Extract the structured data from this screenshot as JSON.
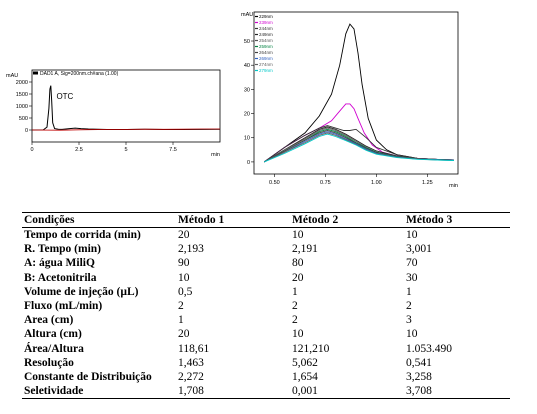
{
  "chart_data": [
    {
      "type": "line",
      "title": "",
      "ylabel": "mAU",
      "xlabel": "min",
      "legend": [
        "DAD1 A, Sig=200nm.ch#ana (1.00)"
      ],
      "annotations": [
        {
          "text": "OTC"
        }
      ],
      "xlim": [
        0,
        10
      ],
      "ylim": [
        -500,
        2500
      ],
      "xticks": [
        0,
        2.5,
        5,
        7.5
      ],
      "xtick_labels": [
        "0",
        "2.5",
        "5",
        "7.5"
      ],
      "yticks": [
        0,
        500,
        1000,
        1500,
        2000
      ],
      "series": [
        {
          "color": "#000000",
          "x": [
            0,
            0.6,
            0.8,
            0.9,
            0.95,
            1.0,
            1.05,
            1.1,
            1.2,
            1.4,
            1.6,
            2.0,
            2.3,
            2.6,
            3.0,
            4.0,
            5.0,
            6.0,
            7.0,
            8.0,
            9.0,
            10.0
          ],
          "y": [
            0,
            5,
            120,
            900,
            1700,
            1850,
            1200,
            300,
            60,
            30,
            25,
            60,
            80,
            60,
            40,
            20,
            20,
            30,
            20,
            20,
            25,
            30
          ]
        },
        {
          "color": "#c00000",
          "x": [
            0,
            1.5,
            2.5,
            4.0,
            5.0,
            6.0,
            7.0,
            8.0,
            9.0,
            10.0
          ],
          "y": [
            0,
            -10,
            10,
            20,
            25,
            35,
            30,
            35,
            40,
            40
          ]
        }
      ]
    },
    {
      "type": "line",
      "title": "",
      "ylabel": "mAU",
      "xlabel": "min",
      "xlim": [
        0.4,
        1.4
      ],
      "ylim": [
        -5,
        62
      ],
      "xticks": [
        0.5,
        0.75,
        1.0,
        1.25
      ],
      "xtick_labels": [
        "0.50",
        "0.75",
        "1.00",
        "1.25"
      ],
      "yticks": [
        0,
        10,
        20,
        30,
        40,
        50
      ],
      "legend": [
        "229nm",
        "239nm",
        "244nm",
        "249nm",
        "254nm",
        "259nm",
        "264nm",
        "269nm",
        "274nm",
        "279nm"
      ],
      "series": [
        {
          "name": "229nm",
          "color": "#000000",
          "x": [
            0.45,
            0.55,
            0.65,
            0.72,
            0.78,
            0.82,
            0.85,
            0.87,
            0.89,
            0.91,
            0.93,
            0.96,
            1.0,
            1.05,
            1.1,
            1.2,
            1.3,
            1.38
          ],
          "y": [
            0,
            6,
            12,
            19,
            28,
            40,
            53,
            57,
            55,
            45,
            32,
            18,
            9,
            5,
            3,
            1.5,
            1,
            0.8
          ]
        },
        {
          "name": "239nm",
          "color": "#d000d0",
          "x": [
            0.45,
            0.55,
            0.65,
            0.72,
            0.78,
            0.82,
            0.85,
            0.87,
            0.89,
            0.91,
            0.94,
            0.98,
            1.03,
            1.1,
            1.2,
            1.3,
            1.38
          ],
          "y": [
            0,
            6,
            11,
            14,
            17,
            21,
            24,
            24,
            22,
            18,
            12,
            7,
            4,
            2.5,
            1.5,
            1,
            0.8
          ]
        },
        {
          "name": "244nm",
          "color": "#333333",
          "x": [
            0.45,
            0.55,
            0.65,
            0.72,
            0.76,
            0.8,
            0.84,
            0.87,
            0.9,
            0.95,
            1.0,
            1.1,
            1.2,
            1.3,
            1.38
          ],
          "y": [
            0,
            6,
            11,
            14,
            15,
            14,
            13,
            13,
            13.5,
            10,
            6,
            3,
            1.5,
            1,
            0.8
          ]
        },
        {
          "name": "249nm",
          "color": "#222222",
          "x": [
            0.45,
            0.55,
            0.65,
            0.72,
            0.76,
            0.8,
            0.85,
            0.9,
            0.95,
            1.0,
            1.1,
            1.2,
            1.3,
            1.38
          ],
          "y": [
            0,
            5,
            10,
            13.5,
            14.5,
            13.5,
            11.5,
            9,
            6.5,
            4.5,
            2.5,
            1.5,
            1,
            0.8
          ]
        },
        {
          "name": "254nm",
          "color": "#555555",
          "x": [
            0.45,
            0.55,
            0.65,
            0.72,
            0.76,
            0.8,
            0.85,
            0.9,
            0.95,
            1.0,
            1.1,
            1.2,
            1.3,
            1.38
          ],
          "y": [
            0,
            5,
            9.5,
            13,
            14,
            13,
            11,
            8.5,
            6,
            4,
            2.3,
            1.4,
            1,
            0.8
          ]
        },
        {
          "name": "259nm",
          "color": "#008040",
          "x": [
            0.45,
            0.55,
            0.65,
            0.72,
            0.76,
            0.8,
            0.85,
            0.9,
            0.95,
            1.0,
            1.1,
            1.2,
            1.3,
            1.38
          ],
          "y": [
            0,
            4.5,
            9,
            12.5,
            13.5,
            12.5,
            10.5,
            8,
            5.8,
            4,
            2.2,
            1.3,
            0.9,
            0.7
          ]
        },
        {
          "name": "264nm",
          "color": "#404040",
          "x": [
            0.45,
            0.55,
            0.65,
            0.72,
            0.76,
            0.8,
            0.85,
            0.9,
            0.95,
            1.0,
            1.1,
            1.2,
            1.3,
            1.38
          ],
          "y": [
            0,
            4.5,
            9,
            12,
            13,
            12,
            10,
            7.7,
            5.5,
            3.8,
            2.1,
            1.3,
            0.9,
            0.7
          ]
        },
        {
          "name": "269nm",
          "color": "#3060c0",
          "x": [
            0.45,
            0.55,
            0.65,
            0.72,
            0.76,
            0.8,
            0.85,
            0.9,
            0.95,
            1.0,
            1.1,
            1.2,
            1.3,
            1.38
          ],
          "y": [
            0,
            4,
            8.5,
            11.5,
            12.5,
            11.5,
            9.5,
            7.5,
            5.3,
            3.6,
            2,
            1.2,
            0.9,
            0.7
          ]
        },
        {
          "name": "274nm",
          "color": "#606060",
          "x": [
            0.45,
            0.55,
            0.65,
            0.72,
            0.76,
            0.8,
            0.85,
            0.9,
            0.95,
            1.0,
            1.1,
            1.2,
            1.3,
            1.38
          ],
          "y": [
            0,
            4,
            8,
            11,
            12,
            11,
            9.2,
            7.2,
            5,
            3.4,
            1.9,
            1.2,
            0.8,
            0.6
          ]
        },
        {
          "name": "279nm",
          "color": "#00c8c8",
          "x": [
            0.45,
            0.55,
            0.65,
            0.72,
            0.76,
            0.8,
            0.85,
            0.9,
            0.95,
            1.0,
            1.1,
            1.2,
            1.3,
            1.38
          ],
          "y": [
            0,
            3.5,
            7.5,
            10.5,
            11.5,
            10.5,
            8.8,
            7,
            4.8,
            3.2,
            1.8,
            1.1,
            0.8,
            0.6
          ]
        }
      ]
    },
    {
      "type": "table",
      "headers": [
        "Condições",
        "Método 1",
        "Método 2",
        "Método 3"
      ],
      "rows": [
        [
          "Tempo de corrida  (min)",
          "20",
          "10",
          "10"
        ],
        [
          "R. Tempo (min)",
          "2,193",
          "2,191",
          "3,001"
        ],
        [
          "A: água MiliQ",
          "90",
          "80",
          "70"
        ],
        [
          "B: Acetonitrila",
          "10",
          "20",
          "30"
        ],
        [
          "Volume de injeção  (µL)",
          "0,5",
          "1",
          "1"
        ],
        [
          "Fluxo (mL/min)",
          "2",
          "2",
          "2"
        ],
        [
          "Area (cm)",
          "1",
          "2",
          "3"
        ],
        [
          "Altura (cm)",
          "20",
          "10",
          "10"
        ],
        [
          "Área/Altura",
          "118,61",
          "121,210",
          "1.053.490"
        ],
        [
          "Resolução",
          "1,463",
          "5,062",
          "0,541"
        ],
        [
          "Constante de Distribuição",
          "2,272",
          "1,654",
          "3,258"
        ],
        [
          "Seletividade",
          "1,708",
          "0,001",
          "3,708"
        ]
      ]
    }
  ]
}
